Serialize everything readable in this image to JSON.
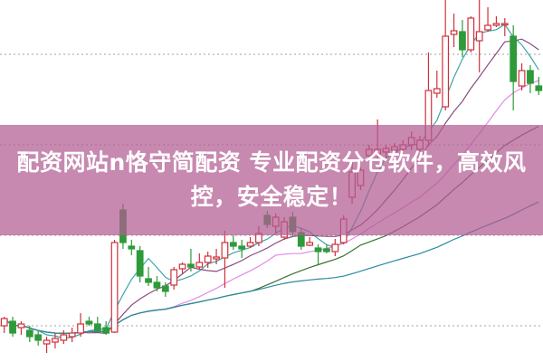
{
  "banner": {
    "line1": "配资网站n恪守简配资 专业配资分仓软件，高效风",
    "line2": "控，安全稳定！"
  },
  "chart_data": {
    "type": "candlestick",
    "title": "",
    "xlabel": "",
    "ylabel": "",
    "ylim": [
      0,
      400
    ],
    "grid": "dotted horizontal",
    "gridlines": [
      40,
      140,
      240,
      340
    ],
    "colors": {
      "up": "#d0303a",
      "down": "#2e9a3a",
      "grid": "#a0a0a0"
    },
    "moving_averages": [
      {
        "period": 5,
        "color": "#3aa6a6"
      },
      {
        "period": 10,
        "color": "#8a4a7e"
      },
      {
        "period": 20,
        "color": "#e48ae6"
      },
      {
        "period": 30,
        "color": "#3f6f35"
      },
      {
        "period": 60,
        "color": "#2a8a9e"
      }
    ],
    "candles": [
      [
        40,
        48,
        50,
        32
      ],
      [
        45,
        32,
        50,
        28
      ],
      [
        38,
        42,
        45,
        30
      ],
      [
        35,
        28,
        40,
        22
      ],
      [
        30,
        24,
        35,
        18
      ],
      [
        20,
        24,
        28,
        10
      ],
      [
        22,
        26,
        32,
        15
      ],
      [
        24,
        30,
        35,
        20
      ],
      [
        28,
        32,
        38,
        22
      ],
      [
        32,
        42,
        54,
        28
      ],
      [
        45,
        42,
        50,
        40
      ],
      [
        42,
        35,
        50,
        32
      ],
      [
        38,
        32,
        45,
        30
      ],
      [
        33,
        132,
        135,
        32
      ],
      [
        168,
        132,
        175,
        125
      ],
      [
        128,
        125,
        135,
        118
      ],
      [
        123,
        95,
        128,
        88
      ],
      [
        92,
        88,
        105,
        84
      ],
      [
        88,
        82,
        95,
        78
      ],
      [
        84,
        78,
        88,
        72
      ],
      [
        85,
        102,
        105,
        80
      ],
      [
        103,
        108,
        110,
        98
      ],
      [
        108,
        105,
        125,
        100
      ],
      [
        105,
        110,
        120,
        102
      ],
      [
        110,
        117,
        122,
        104
      ],
      [
        114,
        116,
        125,
        108
      ],
      [
        115,
        132,
        145,
        82
      ],
      [
        132,
        128,
        140,
        124
      ],
      [
        128,
        125,
        135,
        115
      ],
      [
        128,
        132,
        138,
        126
      ],
      [
        132,
        142,
        150,
        128
      ],
      [
        162,
        152,
        167,
        148
      ],
      [
        150,
        160,
        164,
        142
      ],
      [
        138,
        155,
        160,
        135
      ],
      [
        160,
        144,
        166,
        138
      ],
      [
        143,
        128,
        148,
        124
      ],
      [
        129,
        132,
        138,
        128
      ],
      [
        126,
        122,
        130,
        108
      ],
      [
        125,
        122,
        130,
        120
      ],
      [
        122,
        130,
        136,
        117
      ],
      [
        132,
        158,
        162,
        130
      ],
      [
        182,
        210,
        222,
        175
      ],
      [
        195,
        212,
        215,
        190
      ],
      [
        228,
        235,
        240,
        222
      ],
      [
        230,
        235,
        268,
        224
      ],
      [
        232,
        236,
        240,
        226
      ],
      [
        234,
        238,
        242,
        228
      ],
      [
        235,
        240,
        245,
        228
      ],
      [
        240,
        248,
        255,
        234
      ],
      [
        235,
        245,
        250,
        232
      ],
      [
        245,
        300,
        342,
        238
      ],
      [
        297,
        302,
        322,
        292
      ],
      [
        282,
        360,
        400,
        278
      ],
      [
        362,
        366,
        385,
        348
      ],
      [
        365,
        345,
        378,
        337
      ],
      [
        345,
        380,
        382,
        342
      ],
      [
        355,
        365,
        400,
        320
      ],
      [
        367,
        372,
        392,
        365
      ],
      [
        372,
        374,
        382,
        370
      ],
      [
        373,
        374,
        380,
        360
      ],
      [
        360,
        310,
        372,
        278
      ],
      [
        305,
        322,
        330,
        300
      ],
      [
        322,
        308,
        328,
        297
      ],
      [
        305,
        300,
        315,
        295
      ]
    ]
  }
}
